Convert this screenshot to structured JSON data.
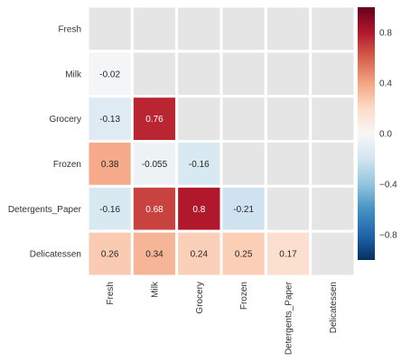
{
  "chart_data": {
    "type": "heatmap",
    "title": "",
    "xlabel": "",
    "ylabel": "",
    "rows": [
      "Fresh",
      "Milk",
      "Grocery",
      "Frozen",
      "Detergents_Paper",
      "Delicatessen"
    ],
    "columns": [
      "Fresh",
      "Milk",
      "Grocery",
      "Frozen",
      "Detergents_Paper",
      "Delicatessen"
    ],
    "mask": "upper triangle and diagonal masked (shown as gray)",
    "cells": [
      {
        "row": "Milk",
        "col": "Fresh",
        "value": -0.02,
        "label": "-0.02"
      },
      {
        "row": "Grocery",
        "col": "Fresh",
        "value": -0.13,
        "label": "-0.13"
      },
      {
        "row": "Grocery",
        "col": "Milk",
        "value": 0.76,
        "label": "0.76"
      },
      {
        "row": "Frozen",
        "col": "Fresh",
        "value": 0.38,
        "label": "0.38"
      },
      {
        "row": "Frozen",
        "col": "Milk",
        "value": -0.055,
        "label": "-0.055"
      },
      {
        "row": "Frozen",
        "col": "Grocery",
        "value": -0.16,
        "label": "-0.16"
      },
      {
        "row": "Detergents_Paper",
        "col": "Fresh",
        "value": -0.16,
        "label": "-0.16"
      },
      {
        "row": "Detergents_Paper",
        "col": "Milk",
        "value": 0.68,
        "label": "0.68"
      },
      {
        "row": "Detergents_Paper",
        "col": "Grocery",
        "value": 0.8,
        "label": "0.8"
      },
      {
        "row": "Detergents_Paper",
        "col": "Frozen",
        "value": -0.21,
        "label": "-0.21"
      },
      {
        "row": "Delicatessen",
        "col": "Fresh",
        "value": 0.26,
        "label": "0.26"
      },
      {
        "row": "Delicatessen",
        "col": "Milk",
        "value": 0.34,
        "label": "0.34"
      },
      {
        "row": "Delicatessen",
        "col": "Grocery",
        "value": 0.24,
        "label": "0.24"
      },
      {
        "row": "Delicatessen",
        "col": "Frozen",
        "value": 0.25,
        "label": "0.25"
      },
      {
        "row": "Delicatessen",
        "col": "Detergents_Paper",
        "value": 0.17,
        "label": "0.17"
      }
    ],
    "colorbar": {
      "colormap": "RdBu_r",
      "vmin": -1,
      "vmax": 1,
      "ticks": [
        0.8,
        0.4,
        0.0,
        -0.4,
        -0.8
      ],
      "tick_labels": [
        "0.8",
        "0.4",
        "0.0",
        "−0.4",
        "−0.8"
      ]
    },
    "colors": {
      "masked_cell": "#e5e5e5",
      "cell_border": "#ffffff",
      "dark_text": "#262626",
      "light_text": "#ffffff"
    }
  }
}
